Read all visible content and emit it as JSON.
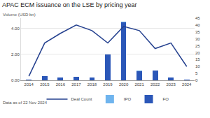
{
  "chart_data": {
    "type": "bar",
    "title": "APAC ECM issuance on the LSE by pricing year",
    "y_label": "Volume (USD bn)",
    "categories": [
      "2014",
      "2015",
      "2016",
      "2017",
      "2018",
      "2019",
      "2020",
      "2021",
      "2022",
      "2023",
      "2024"
    ],
    "series": [
      {
        "name": "FO",
        "type": "bar",
        "color": "#2b57b8",
        "values": [
          0.05,
          0.3,
          0.2,
          0.25,
          0.2,
          2.0,
          4.5,
          0.7,
          0.75,
          0.2,
          0.05
        ]
      },
      {
        "name": "IPO",
        "type": "bar",
        "color": "#6fb4ee",
        "values": [
          0,
          0.05,
          0.02,
          0.03,
          0.02,
          0,
          0.05,
          0.05,
          0.02,
          0.02,
          0
        ]
      },
      {
        "name": "Deal Count",
        "type": "line",
        "axis": "y2",
        "color": "#25418f",
        "values": [
          3,
          27,
          34,
          40,
          36,
          27,
          39,
          36,
          23,
          27,
          10
        ]
      }
    ],
    "stacked": true,
    "ylim": [
      0,
      4.8
    ],
    "yticks": [
      {
        "value": 0,
        "label": "0.00"
      },
      {
        "value": 2,
        "label": "2.00"
      },
      {
        "value": 4,
        "label": "4.00"
      }
    ],
    "y2lim": [
      0,
      45
    ],
    "y2ticks": [
      0,
      5,
      10,
      15,
      20,
      25,
      30,
      35,
      40,
      45
    ],
    "grid": true,
    "legend": "bottom",
    "annotations": [
      "Data as of 22 Nov 2024"
    ]
  }
}
